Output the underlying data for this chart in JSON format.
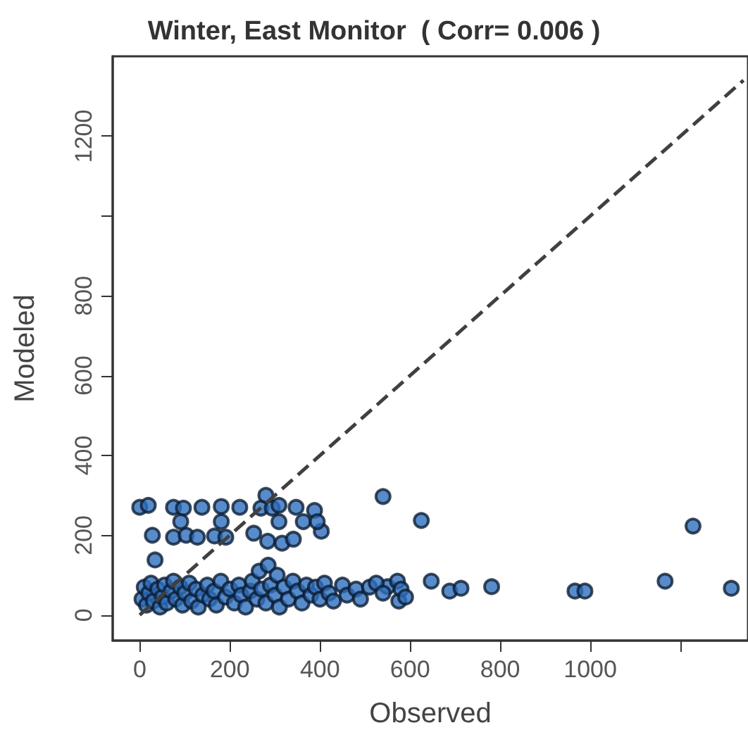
{
  "chart_data": {
    "type": "scatter",
    "title": "Winter, East Monitor  ( Corr= 0.006 )",
    "xlabel": "Observed",
    "ylabel": "Modeled",
    "xlim": [
      -60,
      1350
    ],
    "ylim": [
      -64,
      1400
    ],
    "xticks": [
      0,
      200,
      400,
      600,
      800,
      1000,
      {
        "value": 1200,
        "label": null
      }
    ],
    "yticks": [
      0,
      200,
      400,
      600,
      800,
      {
        "value": 1000,
        "label": null
      },
      1200
    ],
    "grid": false,
    "series": [
      {
        "color": "#2e6ebd",
        "marker": "circle",
        "x": [
          0,
          19,
          75,
          97,
          138,
          181,
          222,
          269,
          294,
          309,
          347,
          388,
          280,
          28,
          75,
          103,
          128,
          166,
          191,
          253,
          284,
          316,
          341,
          403,
          91,
          181,
          309,
          363,
          394,
          34,
          540,
          625,
          550,
          572,
          575,
          647,
          688,
          713,
          781,
          966,
          988,
          1166,
          1228,
          1313,
          5,
          10,
          15,
          20,
          25,
          30,
          40,
          45,
          50,
          55,
          60,
          70,
          75,
          80,
          90,
          95,
          100,
          110,
          115,
          125,
          130,
          140,
          150,
          155,
          165,
          170,
          180,
          190,
          200,
          210,
          220,
          225,
          235,
          245,
          250,
          260,
          265,
          270,
          280,
          285,
          290,
          300,
          305,
          310,
          320,
          330,
          340,
          350,
          360,
          370,
          380,
          390,
          400,
          410,
          420,
          430,
          450,
          460,
          480,
          490,
          510,
          525,
          540,
          580,
          590
        ],
        "values": [
          270,
          275,
          270,
          268,
          270,
          272,
          270,
          268,
          268,
          275,
          270,
          262,
          300,
          200,
          195,
          200,
          195,
          198,
          195,
          205,
          185,
          180,
          190,
          210,
          234,
          234,
          234,
          234,
          234,
          138,
          297,
          237,
          71,
          85,
          35,
          85,
          60,
          67,
          71,
          60,
          60,
          85,
          223,
          67,
          40,
          70,
          25,
          55,
          80,
          35,
          65,
          20,
          45,
          75,
          30,
          60,
          85,
          40,
          70,
          25,
          55,
          80,
          35,
          65,
          20,
          50,
          75,
          40,
          60,
          25,
          85,
          45,
          65,
          30,
          75,
          50,
          20,
          60,
          85,
          40,
          110,
          65,
          30,
          125,
          75,
          50,
          100,
          20,
          70,
          40,
          85,
          60,
          30,
          75,
          50,
          70,
          40,
          80,
          55,
          35,
          75,
          50,
          65,
          40,
          70,
          80,
          55,
          65,
          45
        ]
      },
      {
        "type": "line",
        "color": "#404040",
        "marker": "none",
        "line_style": "dashed",
        "x": [
          0,
          1340
        ],
        "values": [
          0,
          1340
        ]
      }
    ]
  }
}
